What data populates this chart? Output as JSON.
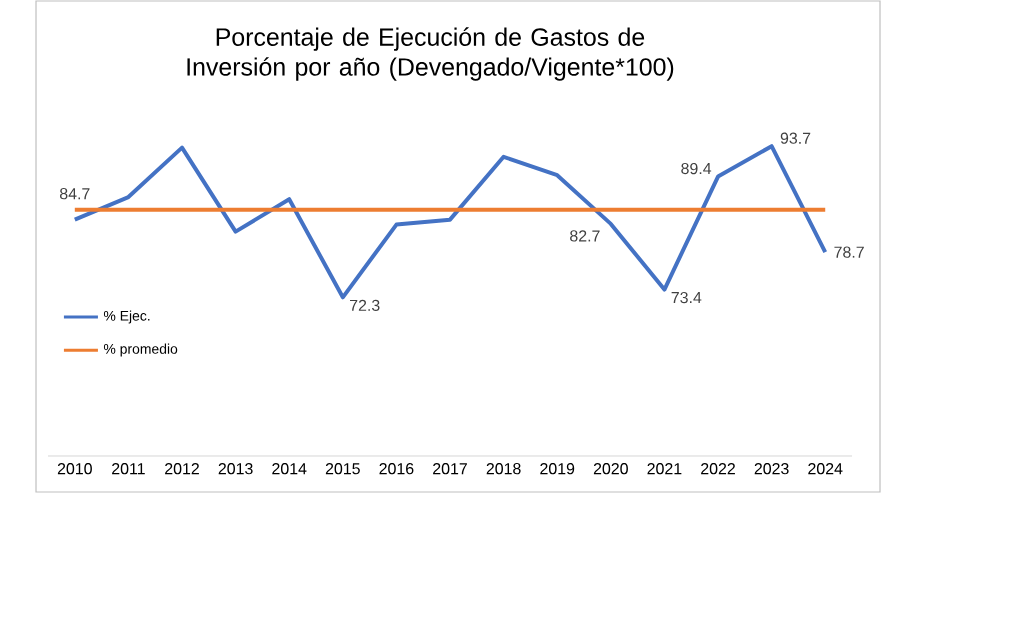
{
  "chart_data": {
    "type": "line",
    "title": "Porcentaje de Ejecución de Gastos de Inversión por año (Devengado/Vigente*100)",
    "categories": [
      "2010",
      "2011",
      "2012",
      "2013",
      "2014",
      "2015",
      "2016",
      "2017",
      "2018",
      "2019",
      "2020",
      "2021",
      "2022",
      "2023",
      "2024"
    ],
    "series": [
      {
        "name": "% Ejec.",
        "color": "#4472c4",
        "values": [
          83.3,
          86.5,
          93.5,
          81.6,
          86.2,
          72.3,
          82.6,
          83.3,
          92.2,
          89.6,
          82.7,
          73.4,
          89.4,
          93.7,
          78.7
        ],
        "value_labels": [
          null,
          null,
          null,
          null,
          null,
          "72.3",
          null,
          null,
          null,
          null,
          "82.7",
          "73.4",
          "89.4",
          "93.7",
          "78.7"
        ]
      },
      {
        "name": "% promedio",
        "color": "#ed7d31",
        "values": [
          84.7,
          84.7,
          84.7,
          84.7,
          84.7,
          84.7,
          84.7,
          84.7,
          84.7,
          84.7,
          84.7,
          84.7,
          84.7,
          84.7,
          84.7
        ],
        "value_labels": [
          "84.7",
          null,
          null,
          null,
          null,
          null,
          null,
          null,
          null,
          null,
          null,
          null,
          null,
          null,
          null
        ]
      }
    ],
    "tick_labels": "x",
    "grid": false,
    "legend": "left",
    "marker": "none",
    "line_style": "solid"
  }
}
